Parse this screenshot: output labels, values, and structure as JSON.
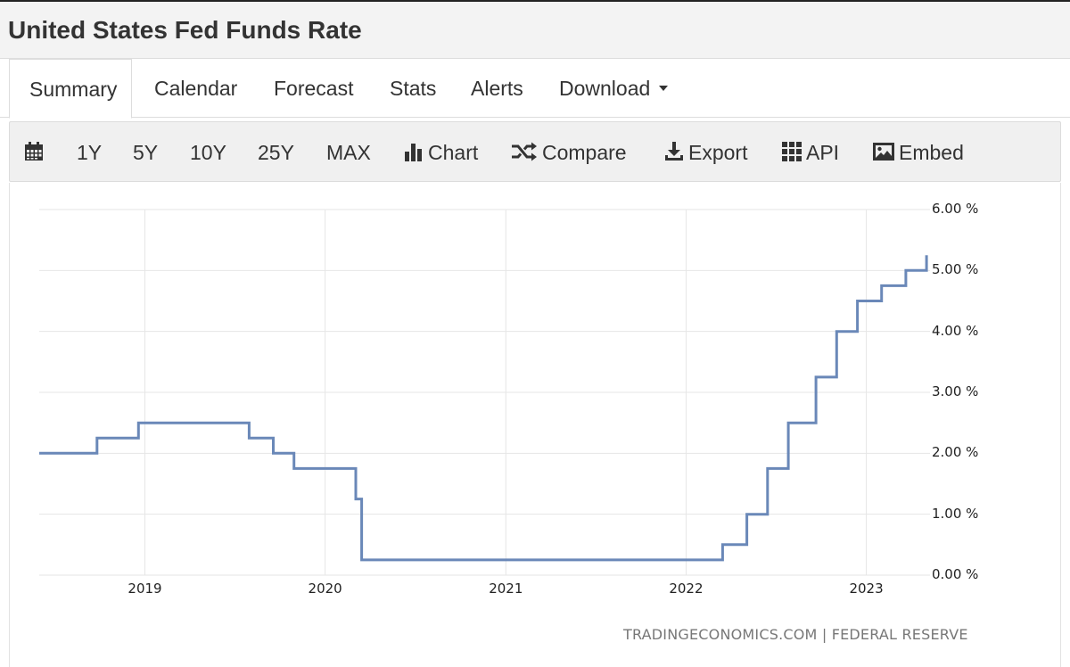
{
  "page_title": "United States Fed Funds Rate",
  "tabs": [
    {
      "label": "Summary",
      "active": true
    },
    {
      "label": "Calendar"
    },
    {
      "label": "Forecast"
    },
    {
      "label": "Stats"
    },
    {
      "label": "Alerts"
    },
    {
      "label": "Download"
    }
  ],
  "toolbar": {
    "ranges": [
      "1Y",
      "5Y",
      "10Y",
      "25Y",
      "MAX"
    ],
    "chart_label": "Chart",
    "compare_label": "Compare",
    "export_label": "Export",
    "api_label": "API",
    "embed_label": "Embed"
  },
  "credit": "TRADINGECONOMICS.COM | FEDERAL RESERVE",
  "colors": {
    "line": "#6a88b8",
    "grid": "#e6e6e6"
  },
  "chart_data": {
    "type": "line",
    "step": true,
    "title": "United States Fed Funds Rate",
    "xlabel": "",
    "ylabel": "",
    "ylim": [
      0,
      6
    ],
    "xlim": [
      "2018-06-01",
      "2023-05-10"
    ],
    "y_ticks": [
      "6.00 %",
      "5.00 %",
      "4.00 %",
      "3.00 %",
      "2.00 %",
      "1.00 %",
      "0.00 %"
    ],
    "y_tick_values": [
      6,
      5,
      4,
      3,
      2,
      1,
      0
    ],
    "x_ticks": [
      "2019",
      "2020",
      "2021",
      "2022",
      "2023"
    ],
    "x_tick_dates": [
      "2019-01-01",
      "2020-01-01",
      "2021-01-01",
      "2022-01-01",
      "2023-01-01"
    ],
    "grid": true,
    "series": [
      {
        "points": [
          [
            "2018-06-01",
            2.0
          ],
          [
            "2018-09-26",
            2.25
          ],
          [
            "2018-12-19",
            2.5
          ],
          [
            "2019-07-31",
            2.25
          ],
          [
            "2019-09-18",
            2.0
          ],
          [
            "2019-10-30",
            1.75
          ],
          [
            "2020-03-03",
            1.25
          ],
          [
            "2020-03-15",
            0.25
          ],
          [
            "2022-03-16",
            0.5
          ],
          [
            "2022-05-04",
            1.0
          ],
          [
            "2022-06-15",
            1.75
          ],
          [
            "2022-07-27",
            2.5
          ],
          [
            "2022-09-21",
            3.25
          ],
          [
            "2022-11-02",
            4.0
          ],
          [
            "2022-12-14",
            4.5
          ],
          [
            "2023-02-01",
            4.75
          ],
          [
            "2023-03-22",
            5.0
          ],
          [
            "2023-05-03",
            5.25
          ]
        ],
        "end": "2023-05-03"
      }
    ]
  }
}
